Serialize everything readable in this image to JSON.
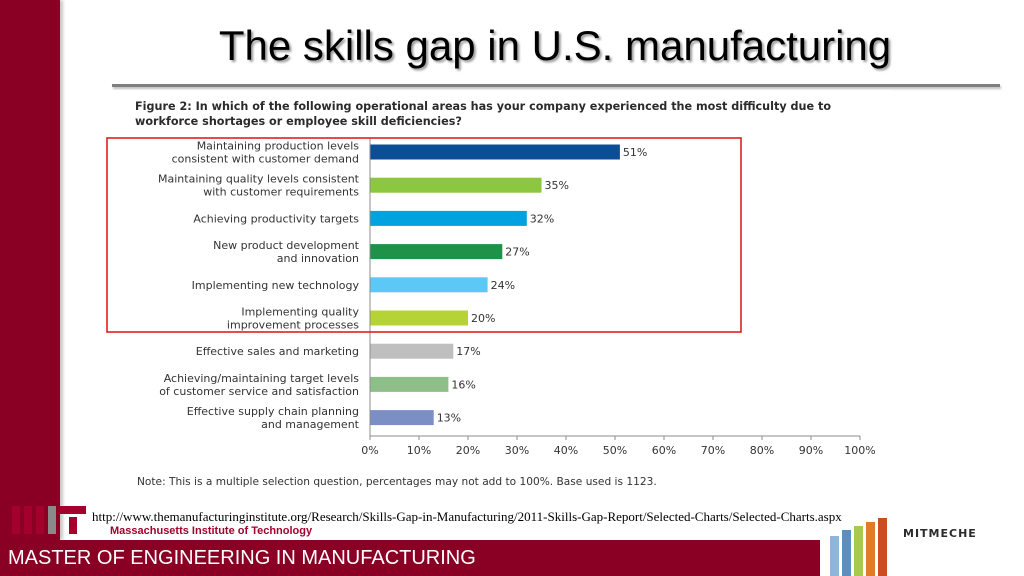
{
  "slide": {
    "title": "The skills gap in U.S. manufacturing",
    "source_url": "http://www.themanufacturinginstitute.org/Research/Skills-Gap-in-Manufacturing/2011-Skills-Gap-Report/Selected-Charts/Selected-Charts.aspx",
    "footer_program": "MASTER OF ENGINEERING IN MANUFACTURING",
    "institution": "Massachusetts Institute of Technology",
    "mit_logo_text": "MIT",
    "mitmeche_logo_text": "MITMECHE",
    "accent_color": "#8a0024"
  },
  "figure": {
    "heading": "Figure 2: In which of the following operational areas has your company experienced the most difficulty due to workforce shortages or employee skill deficiencies?",
    "note": "Note: This is a multiple selection question, percentages may not add to 100%. Base used is 1123."
  },
  "chart_data": {
    "type": "bar",
    "orientation": "horizontal",
    "categories": [
      [
        "Maintaining production levels",
        "consistent with customer demand"
      ],
      [
        "Maintaining quality levels consistent",
        "with customer requirements"
      ],
      [
        "Achieving productivity targets"
      ],
      [
        "New product development",
        "and innovation"
      ],
      [
        "Implementing new technology"
      ],
      [
        "Implementing quality",
        "improvement processes"
      ],
      [
        "Effective sales and marketing"
      ],
      [
        "Achieving/maintaining target levels",
        "of customer service and satisfaction"
      ],
      [
        "Effective supply chain planning",
        "and management"
      ]
    ],
    "values": [
      51,
      35,
      32,
      27,
      24,
      20,
      17,
      16,
      13
    ],
    "value_labels": [
      "51%",
      "35%",
      "32%",
      "27%",
      "24%",
      "20%",
      "17%",
      "16%",
      "13%"
    ],
    "bar_colors": [
      "#0b4e96",
      "#8dc63f",
      "#00a3e0",
      "#1f9149",
      "#5bc8f5",
      "#b5d334",
      "#bfbfbf",
      "#8fbf88",
      "#7b8fc4"
    ],
    "xlim": [
      0,
      100
    ],
    "x_ticks": [
      "0%",
      "10%",
      "20%",
      "30%",
      "40%",
      "50%",
      "60%",
      "70%",
      "80%",
      "90%",
      "100%"
    ],
    "highlight_box": {
      "first_index": 0,
      "last_index": 5,
      "color": "#e02020"
    },
    "grid": false,
    "legend": "none"
  }
}
